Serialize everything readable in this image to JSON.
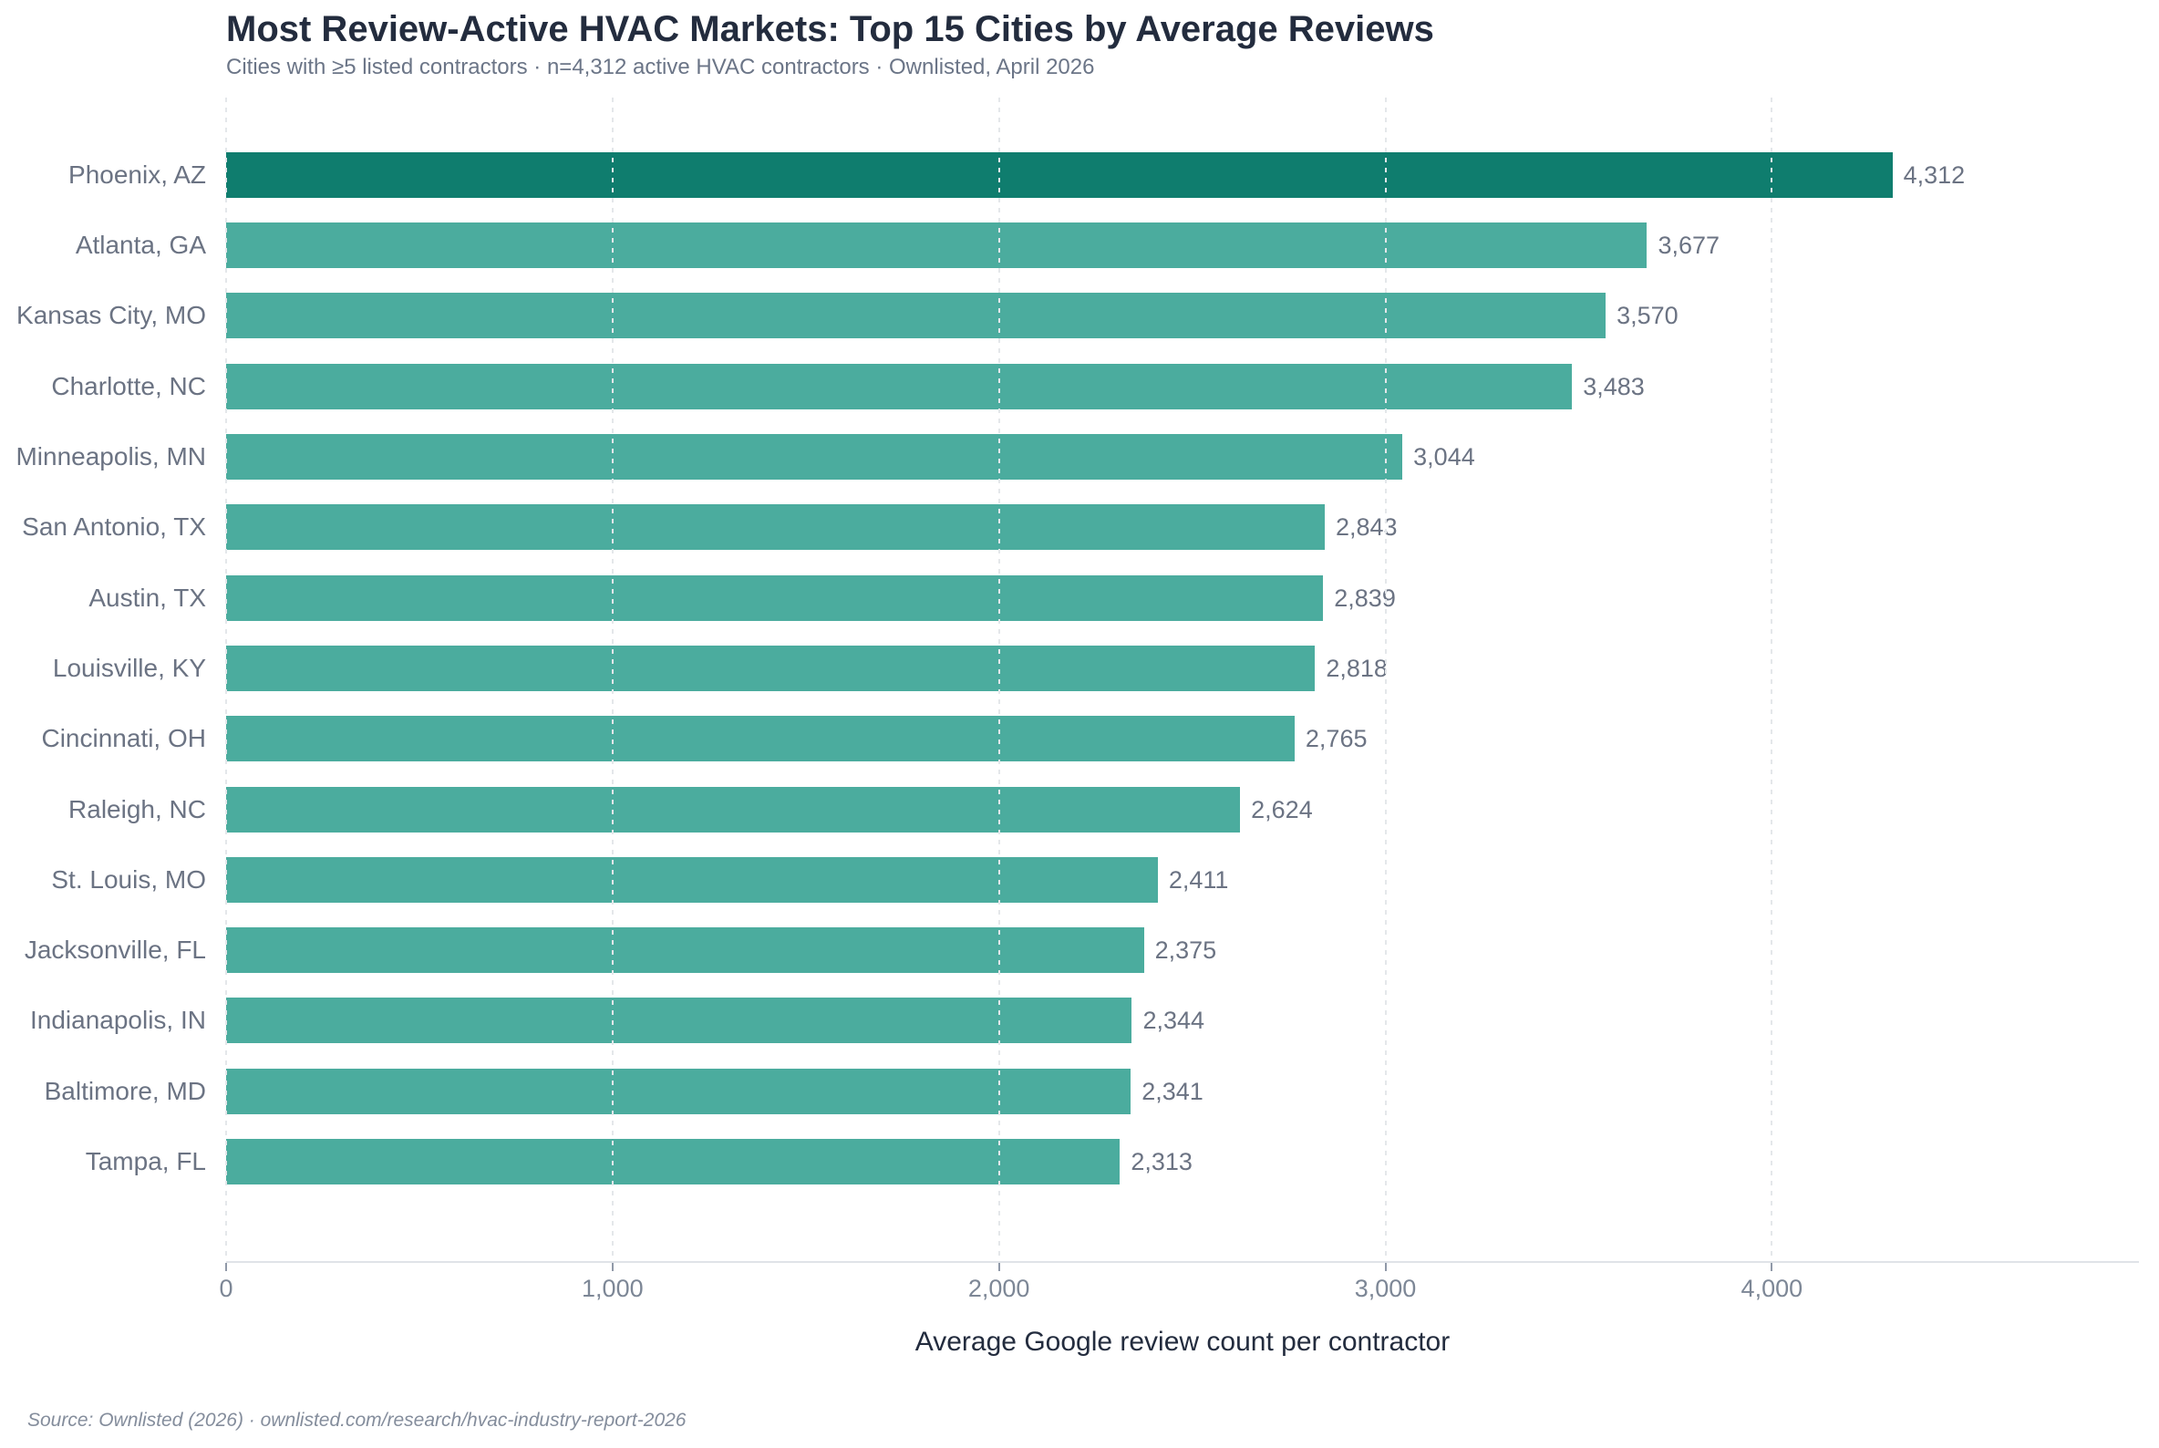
{
  "title": "Most Review-Active HVAC Markets: Top 15 Cities by Average Reviews",
  "subtitle": "Cities with ≥5 listed contractors · n=4,312 active HVAC contractors · Ownlisted, April 2026",
  "source": "Source: Ownlisted (2026) · ownlisted.com/research/hvac-industry-report-2026",
  "chart_data": {
    "type": "bar",
    "orientation": "horizontal",
    "title": "Most Review-Active HVAC Markets: Top 15 Cities by Average Reviews",
    "subtitle": "Cities with ≥5 listed contractors · n=4,312 active HVAC contractors · Ownlisted, April 2026",
    "xlabel": "Average Google review count per contractor",
    "ylabel": "",
    "categories": [
      "Phoenix, AZ",
      "Atlanta, GA",
      "Kansas City, MO",
      "Charlotte, NC",
      "Minneapolis, MN",
      "San Antonio, TX",
      "Austin, TX",
      "Louisville, KY",
      "Cincinnati, OH",
      "Raleigh, NC",
      "St. Louis, MO",
      "Jacksonville, FL",
      "Indianapolis, IN",
      "Baltimore, MD",
      "Tampa, FL"
    ],
    "values": [
      4312,
      3677,
      3570,
      3483,
      3044,
      2843,
      2839,
      2818,
      2765,
      2624,
      2411,
      2375,
      2344,
      2341,
      2313
    ],
    "value_labels": [
      "4,312",
      "3,677",
      "3,570",
      "3,483",
      "3,044",
      "2,843",
      "2,839",
      "2,818",
      "2,765",
      "2,624",
      "2,411",
      "2,375",
      "2,344",
      "2,341",
      "2,313"
    ],
    "x_ticks": [
      {
        "value": 0,
        "label": "0"
      },
      {
        "value": 1000,
        "label": "1,000"
      },
      {
        "value": 2000,
        "label": "2,000"
      },
      {
        "value": 3000,
        "label": "3,000"
      },
      {
        "value": 4000,
        "label": "4,000"
      }
    ],
    "xlim": [
      0,
      4950
    ],
    "grid": "vertical-dashed",
    "legend": "none",
    "highlight_index": 0,
    "colors": {
      "highlight_bar": "#0f7d6e",
      "bar": "#4bac9e",
      "gridline": "#e4e7ea",
      "axis_line": "#e0e3e8",
      "tick": "#9099a8",
      "title_text": "#232c3e",
      "label_text": "#6b7383",
      "subtitle_text": "#6b7587",
      "tick_label_text": "#7d8796",
      "source_text": "#848d9c"
    }
  }
}
